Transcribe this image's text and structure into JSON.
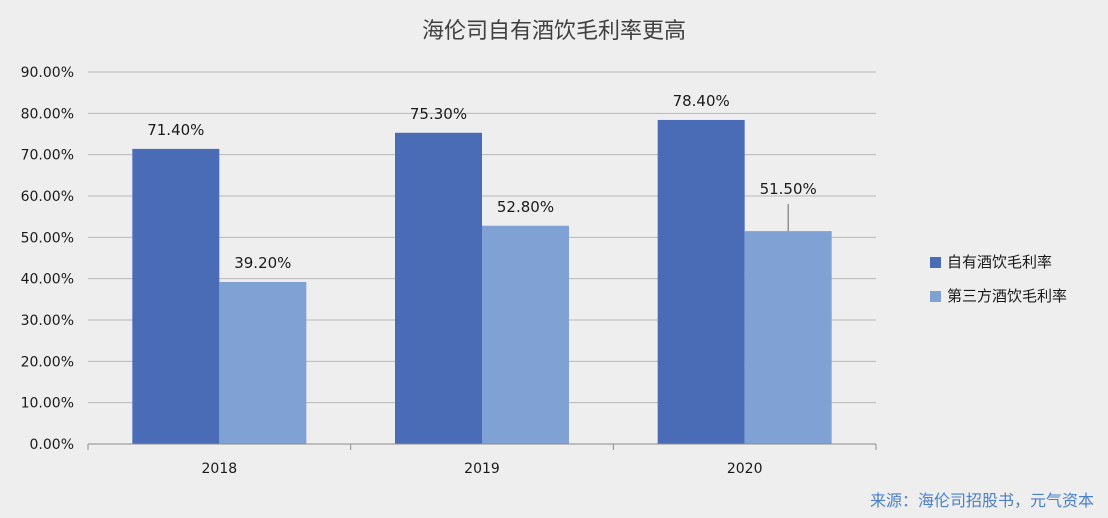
{
  "chart_data": {
    "type": "bar",
    "title": "海伦司自有酒饮毛利率更高",
    "categories": [
      "2018",
      "2019",
      "2020"
    ],
    "series": [
      {
        "name": "自有酒饮毛利率",
        "values": [
          71.4,
          75.3,
          78.4
        ],
        "labels": [
          "71.40%",
          "75.30%",
          "78.40%"
        ],
        "color": "#4a6cb7"
      },
      {
        "name": "第三方酒饮毛利率",
        "values": [
          39.2,
          52.8,
          51.5
        ],
        "labels": [
          "39.20%",
          "52.80%",
          "51.50%"
        ],
        "color": "#7fa1d4"
      }
    ],
    "ylim": [
      0,
      90
    ],
    "yticks": [
      0,
      10,
      20,
      30,
      40,
      50,
      60,
      70,
      80,
      90
    ],
    "ytick_labels": [
      "0.00%",
      "10.00%",
      "20.00%",
      "30.00%",
      "40.00%",
      "50.00%",
      "60.00%",
      "70.00%",
      "80.00%",
      "90.00%"
    ],
    "grid": true,
    "legend_position": "right"
  },
  "source": "来源：海伦司招股书，元气资本"
}
